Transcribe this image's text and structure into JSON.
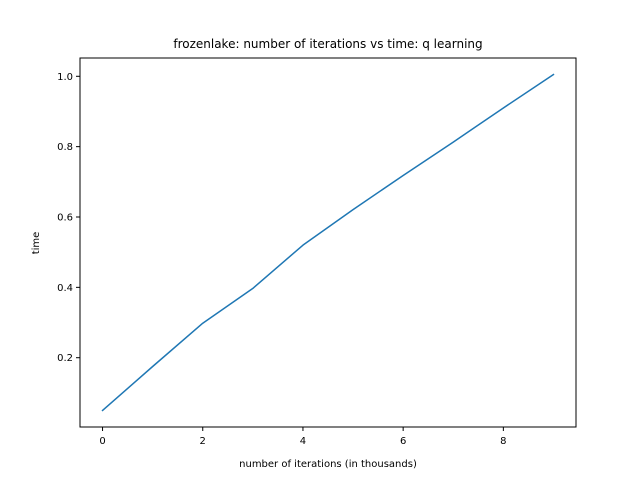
{
  "chart_data": {
    "type": "line",
    "title": "frozenlake: number of iterations vs time: q learning",
    "xlabel": "number of iterations (in thousands)",
    "ylabel": "time",
    "xlim": [
      -0.45,
      9.45
    ],
    "ylim": [
      0.003,
      1.052
    ],
    "xticks": [
      0,
      2,
      4,
      6,
      8
    ],
    "xtick_labels": [
      "0",
      "2",
      "4",
      "6",
      "8"
    ],
    "yticks": [
      0.2,
      0.4,
      0.6,
      0.8,
      1.0
    ],
    "ytick_labels": [
      "0.2",
      "0.4",
      "0.6",
      "0.8",
      "1.0"
    ],
    "grid": false,
    "colors": {
      "line": "#1f77b4",
      "axes": "#000000",
      "background": "#ffffff"
    },
    "series": [
      {
        "x": [
          0,
          1,
          2,
          3,
          4,
          5,
          6,
          7,
          8,
          9
        ],
        "values": [
          0.05,
          0.175,
          0.298,
          0.397,
          0.52,
          0.621,
          0.718,
          0.813,
          0.91,
          1.005
        ]
      }
    ]
  }
}
